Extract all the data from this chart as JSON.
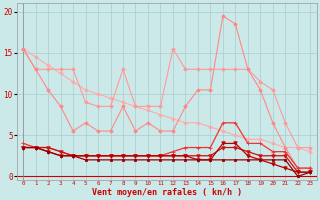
{
  "background_color": "#cce9e9",
  "grid_color": "#aacccc",
  "xlabel": "Vent moyen/en rafales ( kn/h )",
  "x_ticks": [
    0,
    1,
    2,
    3,
    4,
    5,
    6,
    7,
    8,
    9,
    10,
    11,
    12,
    13,
    14,
    15,
    16,
    17,
    18,
    19,
    20,
    21,
    22,
    23
  ],
  "ylim": [
    -0.5,
    21
  ],
  "y_ticks": [
    0,
    5,
    10,
    15,
    20
  ],
  "series": [
    {
      "color": "#ffaaaa",
      "lw": 0.8,
      "marker": "D",
      "ms": 1.8,
      "y": [
        15.5,
        14.5,
        13.5,
        12.5,
        11.5,
        10.5,
        10.0,
        9.5,
        9.0,
        8.5,
        8.0,
        7.5,
        7.0,
        6.5,
        6.5,
        6.0,
        5.5,
        5.0,
        4.5,
        4.5,
        4.0,
        3.5,
        3.5,
        3.0
      ]
    },
    {
      "color": "#ff9999",
      "lw": 0.8,
      "marker": "D",
      "ms": 1.8,
      "y": [
        15.5,
        13.0,
        13.0,
        13.0,
        13.0,
        9.0,
        8.5,
        8.5,
        13.0,
        8.5,
        8.5,
        8.5,
        15.5,
        13.0,
        13.0,
        13.0,
        13.0,
        13.0,
        13.0,
        11.5,
        10.5,
        6.5,
        3.5,
        3.5
      ]
    },
    {
      "color": "#ff8888",
      "lw": 0.8,
      "marker": "D",
      "ms": 1.8,
      "y": [
        15.5,
        13.0,
        10.5,
        8.5,
        5.5,
        6.5,
        5.5,
        5.5,
        8.5,
        5.5,
        6.5,
        5.5,
        5.5,
        8.5,
        10.5,
        10.5,
        19.5,
        18.5,
        13.0,
        10.5,
        6.5,
        3.5,
        1.0,
        1.0
      ]
    },
    {
      "color": "#ee3333",
      "lw": 0.9,
      "marker": "+",
      "ms": 3.0,
      "y": [
        4.0,
        3.5,
        3.5,
        3.0,
        2.5,
        2.5,
        2.5,
        2.5,
        2.5,
        2.5,
        2.5,
        2.5,
        3.0,
        3.5,
        3.5,
        3.5,
        6.5,
        6.5,
        4.0,
        4.0,
        3.0,
        3.0,
        1.0,
        1.0
      ]
    },
    {
      "color": "#cc1111",
      "lw": 0.9,
      "marker": "v",
      "ms": 2.5,
      "y": [
        3.5,
        3.5,
        3.5,
        3.0,
        2.5,
        2.5,
        2.5,
        2.5,
        2.5,
        2.5,
        2.5,
        2.5,
        2.5,
        2.5,
        2.5,
        2.5,
        3.5,
        3.5,
        3.0,
        2.5,
        2.5,
        2.5,
        0.5,
        0.5
      ]
    },
    {
      "color": "#bb0000",
      "lw": 0.9,
      "marker": "v",
      "ms": 2.5,
      "y": [
        3.5,
        3.5,
        3.0,
        2.5,
        2.5,
        2.5,
        2.5,
        2.5,
        2.5,
        2.5,
        2.5,
        2.5,
        2.5,
        2.5,
        2.0,
        2.0,
        4.0,
        4.0,
        2.5,
        2.0,
        1.5,
        1.0,
        0.5,
        0.5
      ]
    },
    {
      "color": "#990000",
      "lw": 0.9,
      "marker": "s",
      "ms": 1.5,
      "y": [
        3.5,
        3.5,
        3.0,
        2.5,
        2.5,
        2.0,
        2.0,
        2.0,
        2.0,
        2.0,
        2.0,
        2.0,
        2.0,
        2.0,
        2.0,
        2.0,
        2.0,
        2.0,
        2.0,
        2.0,
        2.0,
        2.0,
        0.0,
        0.5
      ]
    }
  ]
}
